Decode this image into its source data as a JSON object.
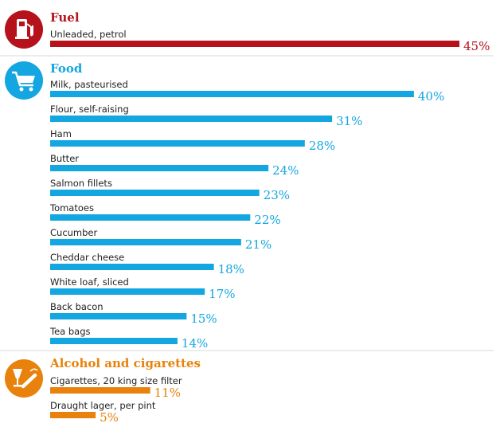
{
  "chart_data": {
    "type": "bar",
    "orientation": "horizontal",
    "title": "",
    "xlim": [
      0,
      45
    ],
    "groups": [
      {
        "name": "Fuel",
        "color": "#b5121b",
        "icon": "fuel-pump-icon",
        "items": [
          {
            "label": "Unleaded, petrol",
            "value": 45,
            "value_label": "45%"
          }
        ]
      },
      {
        "name": "Food",
        "color": "#14a6e0",
        "icon": "shopping-cart-icon",
        "items": [
          {
            "label": "Milk, pasteurised",
            "value": 40,
            "value_label": "40%"
          },
          {
            "label": "Flour, self-raising",
            "value": 31,
            "value_label": "31%"
          },
          {
            "label": "Ham",
            "value": 28,
            "value_label": "28%"
          },
          {
            "label": "Butter",
            "value": 24,
            "value_label": "24%"
          },
          {
            "label": "Salmon fillets",
            "value": 23,
            "value_label": "23%"
          },
          {
            "label": "Tomatoes",
            "value": 22,
            "value_label": "22%"
          },
          {
            "label": "Cucumber",
            "value": 21,
            "value_label": "21%"
          },
          {
            "label": "Cheddar cheese",
            "value": 18,
            "value_label": "18%"
          },
          {
            "label": "White loaf, sliced",
            "value": 17,
            "value_label": "17%"
          },
          {
            "label": "Back bacon",
            "value": 15,
            "value_label": "15%"
          },
          {
            "label": "Tea bags",
            "value": 14,
            "value_label": "14%"
          }
        ]
      },
      {
        "name": "Alcohol and cigarettes",
        "color": "#e8820c",
        "icon": "glass-and-cigarette-icon",
        "items": [
          {
            "label": "Cigarettes, 20 king size filter",
            "value": 11,
            "value_label": "11%"
          },
          {
            "label": "Draught lager, per pint",
            "value": 5,
            "value_label": "5%"
          }
        ]
      }
    ]
  }
}
